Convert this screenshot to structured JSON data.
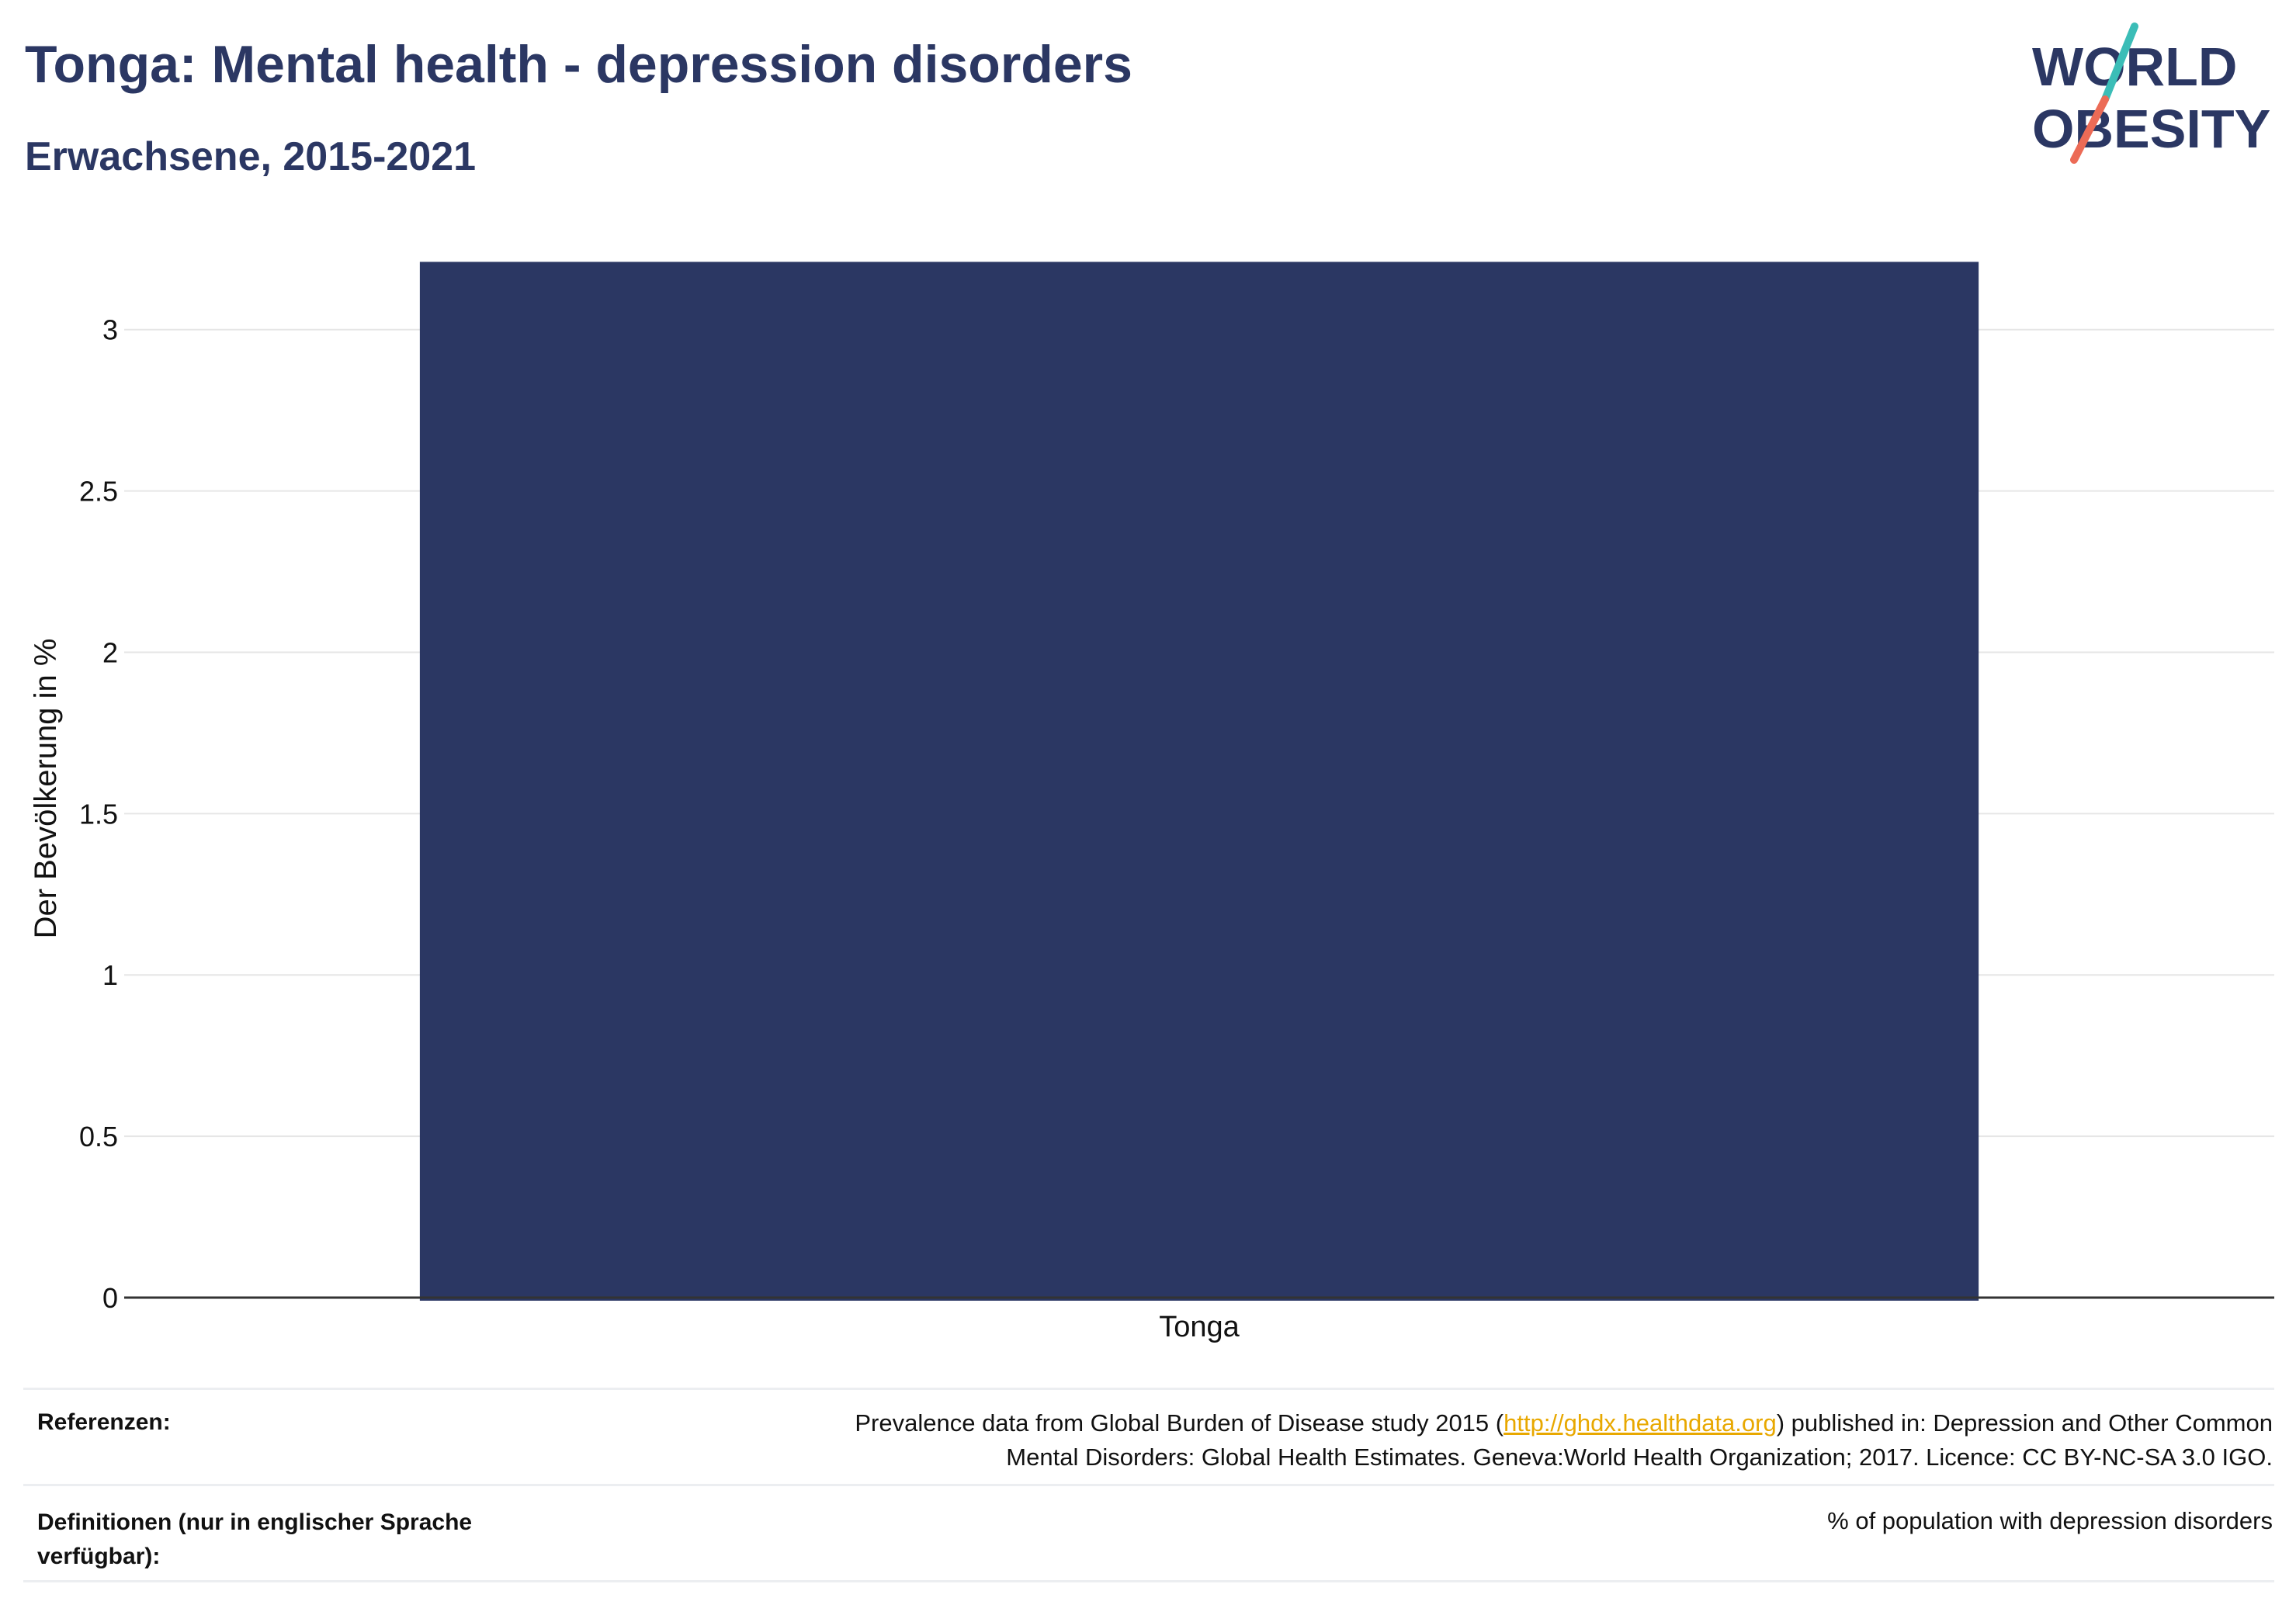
{
  "header": {
    "title": "Tonga: Mental health - depression disorders",
    "subtitle": "Erwachsene, 2015-2021"
  },
  "logo": {
    "line1": "WORLD",
    "line2": "OBESITY",
    "accent_teal": "#3bbdb7",
    "accent_coral": "#ec6b56",
    "text_color": "#2b3763"
  },
  "chart_data": {
    "type": "bar",
    "categories": [
      "Tonga"
    ],
    "values": [
      3.21
    ],
    "ylabel": "Der Bevölkerung in %",
    "xlabel": "",
    "ylim": [
      0,
      3.3
    ],
    "yticks": [
      "0",
      "0.5",
      "1",
      "1.5",
      "2",
      "2.5",
      "3"
    ],
    "bar_color": "#2b3763",
    "grid": true
  },
  "footer": {
    "references_label": "Referenzen:",
    "references_pre": "Prevalence data from Global Burden of Disease study 2015 (",
    "references_link": "http://ghdx.healthdata.org",
    "references_post_line1": ") published in: Depression and Other Common",
    "references_line2": "Mental Disorders: Global Health Estimates. Geneva:World Health Organization; 2017. Licence: CC BY-NC-SA 3.0 IGO.",
    "definitions_label_line1": "Definitionen (nur in englischer Sprache",
    "definitions_label_line2": "verfügbar):",
    "definitions_text": "% of population with depression disorders"
  }
}
